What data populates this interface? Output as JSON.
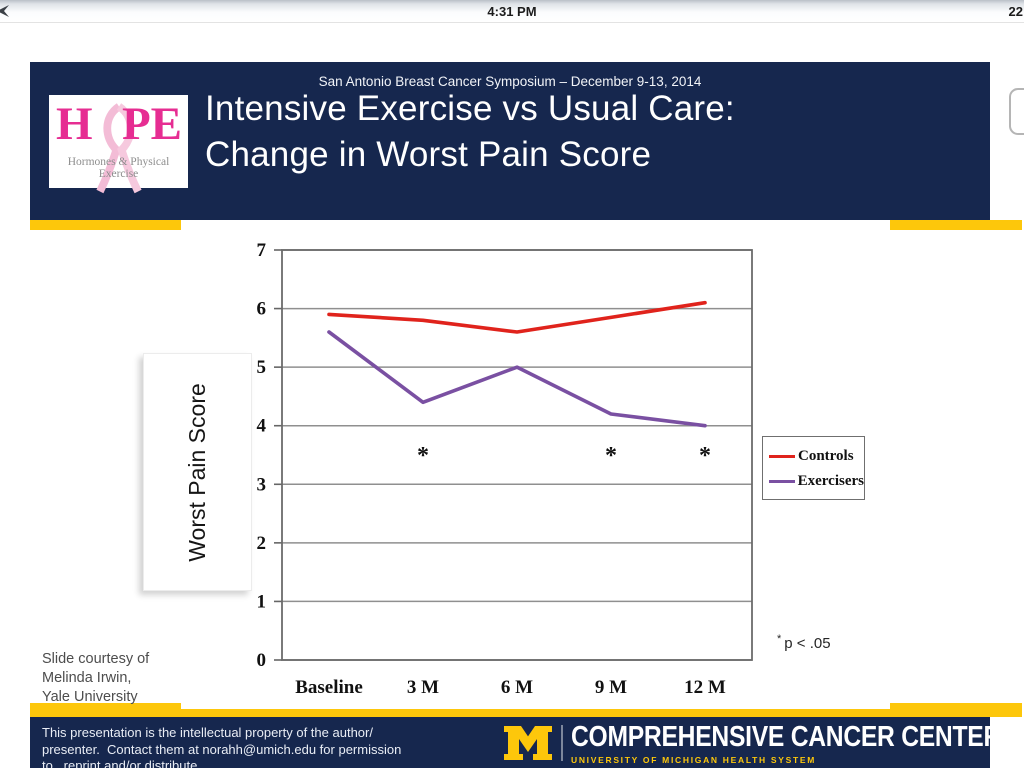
{
  "status_bar": {
    "time": "4:31 PM",
    "right_text": "22"
  },
  "header": {
    "symposium": "San Antonio Breast Cancer Symposium – December 9-13, 2014",
    "title_line1": "Intensive Exercise vs Usual Care:",
    "title_line2": "Change in Worst Pain Score",
    "logo": {
      "word_h": "H",
      "word_pe": "PE",
      "subtitle": "Hormones & Physical Exercise"
    }
  },
  "chart_data": {
    "type": "line",
    "title": "Intensive Exercise vs Usual Care: Change in Worst Pain Score",
    "x": [
      "Baseline",
      "3 M",
      "6 M",
      "9 M",
      "12 M"
    ],
    "series": [
      {
        "name": "Controls",
        "color": "#e0231c",
        "values": [
          5.9,
          5.8,
          5.6,
          5.85,
          6.1
        ]
      },
      {
        "name": "Exercisers",
        "color": "#7a50a2",
        "values": [
          5.6,
          4.4,
          5.0,
          4.2,
          4.0
        ]
      }
    ],
    "xlabel": "",
    "ylabel": "Worst Pain Score",
    "ylim": [
      0,
      7
    ],
    "yticks": [
      0,
      1,
      2,
      3,
      4,
      5,
      6,
      7
    ],
    "grid": true,
    "legend_position": "right",
    "significance_markers": {
      "symbol": "*",
      "x_indices": [
        1,
        3,
        4
      ],
      "y": 3.5
    },
    "annotation": {
      "star": "*",
      "text": "p < .05"
    }
  },
  "courtesy": {
    "lines": [
      "Slide courtesy of",
      "Melinda Irwin,",
      "Yale University"
    ]
  },
  "footer": {
    "disclaimer_lines": [
      "This presentation is the intellectual property of the author/",
      "presenter.  Contact them at norahh@umich.edu for permission",
      "to   reprint and/or distribute."
    ],
    "org_name": "COMPREHENSIVE CANCER CENTER",
    "org_subtitle": "UNIVERSITY OF MICHIGAN HEALTH SYSTEM"
  },
  "colors": {
    "navy": "#16274e",
    "maize": "#fdc70b",
    "controls_red": "#e0231c",
    "exercisers_purple": "#7a50a2",
    "hope_pink": "#e62d92",
    "ribbon_pink": "#f3bcd6"
  }
}
